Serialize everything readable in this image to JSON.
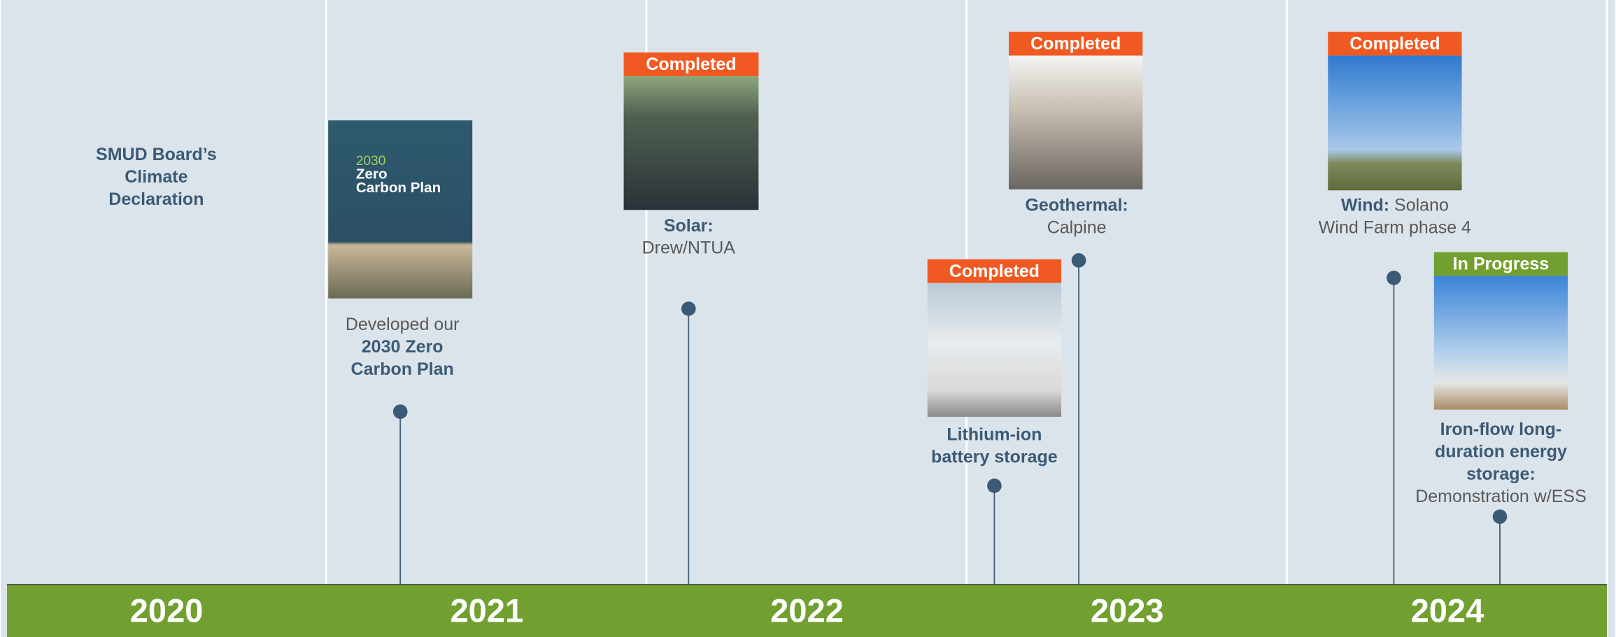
{
  "years": [
    "2020",
    "2021",
    "2022",
    "2023",
    "2024"
  ],
  "events": [
    {
      "lines": [
        [
          {
            "text": "SMUD Board’s",
            "bold": true
          }
        ],
        [
          {
            "text": "Climate",
            "bold": true
          }
        ],
        [
          {
            "text": "Declaration",
            "bold": true
          }
        ]
      ]
    },
    {
      "cover_text": [
        "2030",
        "Zero",
        "Carbon Plan"
      ],
      "lines": [
        [
          {
            "text": "Developed our",
            "bold": false
          }
        ],
        [
          {
            "text": "2030 Zero",
            "bold": true
          }
        ],
        [
          {
            "text": "Carbon Plan",
            "bold": true
          }
        ]
      ]
    },
    {
      "badge": "Completed",
      "badge_color": "#f05a22",
      "lines": [
        [
          {
            "text": "Solar:",
            "bold": true
          }
        ],
        [
          {
            "text": "Drew/NTUA",
            "bold": false
          }
        ]
      ]
    },
    {
      "badge": "Completed",
      "badge_color": "#f05a22",
      "lines": [
        [
          {
            "text": "Lithium-ion",
            "bold": true
          }
        ],
        [
          {
            "text": "battery storage",
            "bold": true
          }
        ]
      ]
    },
    {
      "badge": "Completed",
      "badge_color": "#f05a22",
      "lines": [
        [
          {
            "text": "Geothermal:",
            "bold": true
          }
        ],
        [
          {
            "text": "Calpine",
            "bold": false
          }
        ]
      ]
    },
    {
      "badge": "Completed",
      "badge_color": "#f05a22",
      "lines": [
        [
          {
            "text": "Wind:",
            "bold": true
          },
          {
            "text": " Solano",
            "bold": false
          }
        ],
        [
          {
            "text": "Wind Farm phase 4",
            "bold": false
          }
        ]
      ]
    },
    {
      "badge": "In Progress",
      "badge_color": "#72a030",
      "lines": [
        [
          {
            "text": "Iron-flow long-",
            "bold": true
          }
        ],
        [
          {
            "text": "duration energy",
            "bold": true
          }
        ],
        [
          {
            "text": "storage:",
            "bold": true
          }
        ],
        [
          {
            "text": "Demonstration w/ESS",
            "bold": false
          }
        ]
      ]
    }
  ]
}
